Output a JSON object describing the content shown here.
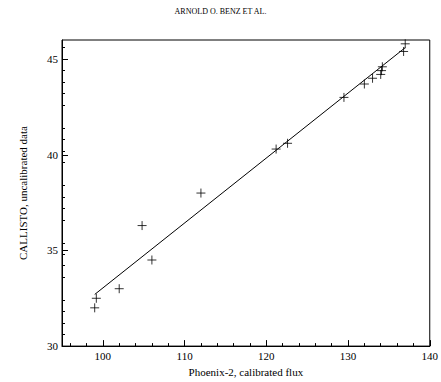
{
  "page_header": "ARNOLD O. BENZ ET AL.",
  "chart_data": {
    "type": "scatter",
    "xlabel": "Phoenix-2, calibrated flux",
    "ylabel": "CALLISTO, uncalibrated data",
    "xlim": [
      95,
      140
    ],
    "xticks": [
      100,
      110,
      120,
      130,
      140
    ],
    "ylim": [
      30,
      46
    ],
    "yticks": [
      30,
      35,
      40,
      45
    ],
    "grid": false,
    "series": [
      {
        "type": "scatter",
        "marker": "plus",
        "color": "#000000",
        "x": [
          99,
          99.2,
          102,
          104.8,
          106,
          112,
          121.2,
          122.6,
          129.5,
          132,
          133,
          134,
          134.2,
          134.1,
          136.8,
          137
        ],
        "values": [
          32.0,
          32.5,
          33.0,
          36.3,
          34.5,
          38.0,
          40.3,
          40.6,
          43.0,
          43.7,
          44.0,
          44.2,
          44.6,
          44.4,
          45.4,
          45.8
        ]
      },
      {
        "type": "line",
        "line_style": "solid",
        "color": "#000000",
        "x": [
          99,
          137
        ],
        "values": [
          32.7,
          45.6
        ]
      }
    ]
  }
}
